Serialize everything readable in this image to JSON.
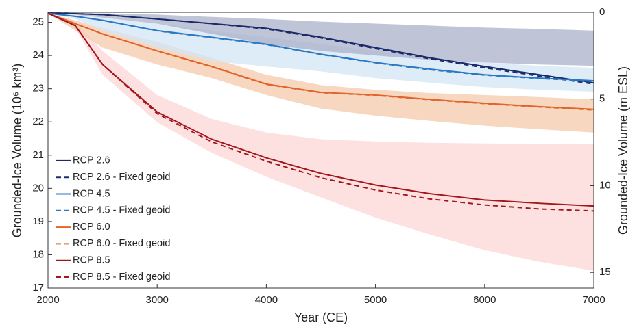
{
  "chart_data": {
    "type": "line",
    "xlabel": "Year (CE)",
    "ylabel": "Grounded-Ice Volume (10⁶ km³)",
    "y2label": "Grounded-Ice Volume (m ESL)",
    "x": [
      2000,
      2250,
      2500,
      3000,
      3500,
      4000,
      4500,
      5000,
      5500,
      6000,
      6500,
      7000
    ],
    "xlim": [
      2000,
      7000
    ],
    "xticks": [
      2000,
      3000,
      4000,
      5000,
      6000,
      7000
    ],
    "ylim": [
      17,
      25.3
    ],
    "yticks": [
      17,
      18,
      19,
      20,
      21,
      22,
      23,
      24,
      25
    ],
    "y2lim": [
      15.9,
      0
    ],
    "y2ticks": [
      0,
      5,
      10,
      15
    ],
    "legend": "lower left",
    "bands": [
      {
        "color": "#fcd6d6",
        "upper": [
          25.27,
          25.02,
          24.14,
          22.81,
          22.09,
          21.68,
          21.48,
          21.41,
          21.37,
          21.35,
          21.33,
          21.33
        ],
        "lower": [
          25.27,
          24.82,
          23.42,
          21.99,
          21.07,
          20.35,
          19.73,
          19.12,
          18.61,
          18.14,
          17.79,
          17.52
        ]
      },
      {
        "color": "#f6c9ac",
        "upper": [
          25.27,
          25.06,
          24.82,
          24.41,
          23.93,
          23.42,
          23.11,
          22.97,
          22.87,
          22.81,
          22.75,
          22.68
        ],
        "lower": [
          25.27,
          24.75,
          24.24,
          23.73,
          23.32,
          22.81,
          22.4,
          22.19,
          22.03,
          21.89,
          21.78,
          21.68
        ]
      },
      {
        "color": "#d3e6f6",
        "upper": [
          25.27,
          25.23,
          25.14,
          24.96,
          24.75,
          24.55,
          24.34,
          24.14,
          23.93,
          23.79,
          23.69,
          23.63
        ],
        "lower": [
          25.27,
          25.1,
          24.75,
          24.24,
          23.83,
          23.67,
          23.52,
          23.32,
          23.18,
          23.05,
          22.97,
          22.91
        ]
      },
      {
        "color": "#a9b0c9",
        "upper": [
          25.27,
          25.27,
          25.27,
          25.23,
          25.16,
          25.1,
          25.02,
          24.96,
          24.9,
          24.84,
          24.8,
          24.75
        ],
        "lower": [
          25.27,
          25.23,
          25.14,
          24.96,
          24.65,
          24.34,
          24.14,
          24.0,
          23.87,
          23.79,
          23.73,
          23.69
        ]
      }
    ],
    "series": [
      {
        "name": "RCP 2.6",
        "color": "#1b2a6b",
        "linestyle": "solid",
        "values": [
          25.27,
          25.26,
          25.23,
          25.1,
          24.96,
          24.82,
          24.55,
          24.24,
          23.93,
          23.67,
          23.42,
          23.18
        ]
      },
      {
        "name": "RCP 2.6 - Fixed geoid",
        "color": "#1b2a6b",
        "linestyle": "dashed",
        "values": [
          25.27,
          25.26,
          25.23,
          25.1,
          24.96,
          24.8,
          24.53,
          24.21,
          23.9,
          23.63,
          23.38,
          23.14
        ]
      },
      {
        "name": "RCP 4.5",
        "color": "#2a78c2",
        "linestyle": "solid",
        "values": [
          25.27,
          25.18,
          25.06,
          24.75,
          24.55,
          24.34,
          24.04,
          23.79,
          23.59,
          23.42,
          23.32,
          23.24
        ]
      },
      {
        "name": "RCP 4.5 - Fixed geoid",
        "color": "#2a78c2",
        "linestyle": "dashed",
        "values": [
          25.27,
          25.18,
          25.06,
          24.74,
          24.54,
          24.33,
          24.03,
          23.78,
          23.57,
          23.41,
          23.31,
          23.22
        ]
      },
      {
        "name": "RCP 6.0",
        "color": "#e0652a",
        "linestyle": "solid",
        "values": [
          25.27,
          24.96,
          24.65,
          24.14,
          23.67,
          23.14,
          22.89,
          22.81,
          22.68,
          22.56,
          22.46,
          22.38
        ]
      },
      {
        "name": "RCP 6.0 - Fixed geoid",
        "color": "#e0652a",
        "linestyle": "dashed",
        "values": [
          25.27,
          24.96,
          24.65,
          24.14,
          23.66,
          23.13,
          22.88,
          22.8,
          22.67,
          22.55,
          22.45,
          22.36
        ]
      },
      {
        "name": "RCP 8.5",
        "color": "#a3161b",
        "linestyle": "solid",
        "values": [
          25.27,
          24.9,
          23.73,
          22.3,
          21.48,
          20.92,
          20.45,
          20.1,
          19.84,
          19.65,
          19.55,
          19.47
        ]
      },
      {
        "name": "RCP 8.5 - Fixed geoid",
        "color": "#a3161b",
        "linestyle": "dashed",
        "values": [
          25.27,
          24.9,
          23.73,
          22.25,
          21.4,
          20.82,
          20.32,
          19.95,
          19.68,
          19.5,
          19.38,
          19.32
        ]
      }
    ]
  }
}
